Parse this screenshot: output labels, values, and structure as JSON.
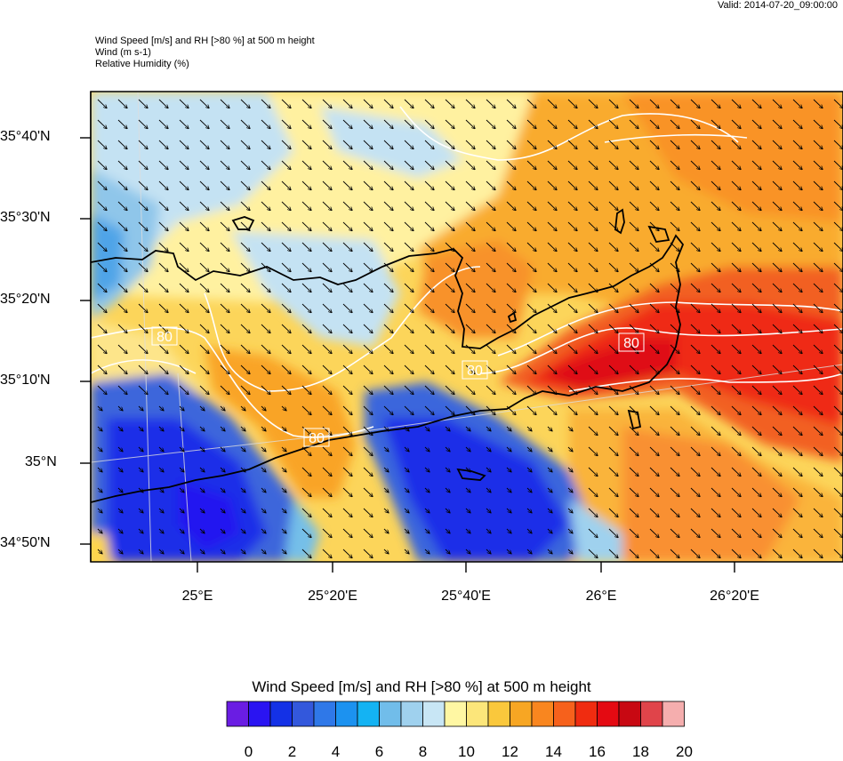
{
  "valid_label": "Valid: 2014-07-20_09:00:00",
  "header": {
    "line1": "Wind Speed [m/s] and RH [>80 %] at 500 m height",
    "line2": "Wind   (m s-1)",
    "line3": "Relative Humidity    (%)"
  },
  "lat_labels": [
    "35°40'N",
    "35°30'N",
    "35°20'N",
    "35°10'N",
    "35°N",
    "34°50'N"
  ],
  "lon_labels": [
    "25°E",
    "25°20'E",
    "25°40'E",
    "26°E",
    "26°20'E"
  ],
  "contour_labels": [
    "80",
    "80",
    "80",
    "80"
  ],
  "colorbar": {
    "title": "Wind Speed [m/s] and RH [>80 %] at 500 m height",
    "ticks": [
      "0",
      "2",
      "4",
      "6",
      "8",
      "10",
      "12",
      "14",
      "16",
      "18",
      "20"
    ],
    "colors": [
      "#6a1de3",
      "#2a14f2",
      "#1431e6",
      "#3358dc",
      "#2f78e8",
      "#1c92f0",
      "#14b3f3",
      "#71bdea",
      "#9fd1ee",
      "#c8e6f5",
      "#fff7a3",
      "#fce67a",
      "#fac83c",
      "#f7a623",
      "#f9861f",
      "#f6611c",
      "#f02c10",
      "#e40a12",
      "#c80812",
      "#e0444a",
      "#f5aeae"
    ]
  },
  "map_data": {
    "wind_direction": "north-westerly",
    "rh_threshold": 80
  }
}
